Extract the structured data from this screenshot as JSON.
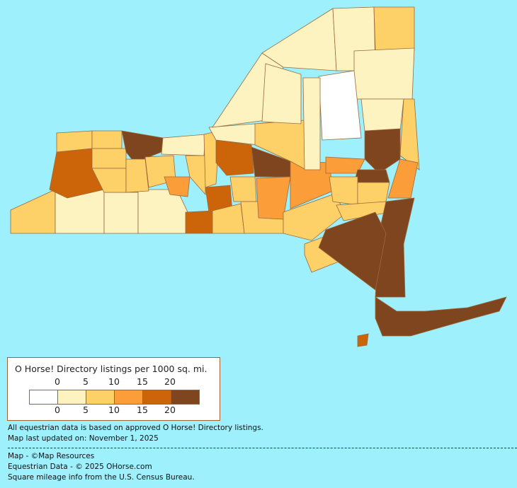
{
  "legend": {
    "title": "O Horse! Directory listings per 1000 sq. mi.",
    "top_labels": [
      "0",
      "5",
      "10",
      "15",
      "20"
    ],
    "bottom_labels": [
      "0",
      "5",
      "10",
      "15",
      "20"
    ],
    "bins": [
      {
        "range": "0",
        "color": "#ffffff"
      },
      {
        "range": "0-5",
        "color": "#fdf3c0"
      },
      {
        "range": "5-10",
        "color": "#fdd068"
      },
      {
        "range": "10-15",
        "color": "#fb9e3a"
      },
      {
        "range": "15-20",
        "color": "#cc6509"
      },
      {
        "range": "20+",
        "color": "#7e451e"
      }
    ]
  },
  "notes": {
    "basis": "All equestrian data is based on approved O Horse! Directory listings.",
    "updated": "Map last updated on: November 1, 2025"
  },
  "credits": {
    "map": "Map - ©Map Resources",
    "data": "Equestrian Data - © 2025 OHorse.com",
    "census": "Square mileage info from the U.S. Census Bureau."
  },
  "colors": {
    "background": "#9ef0fc",
    "border": "#9a6a3c"
  }
}
